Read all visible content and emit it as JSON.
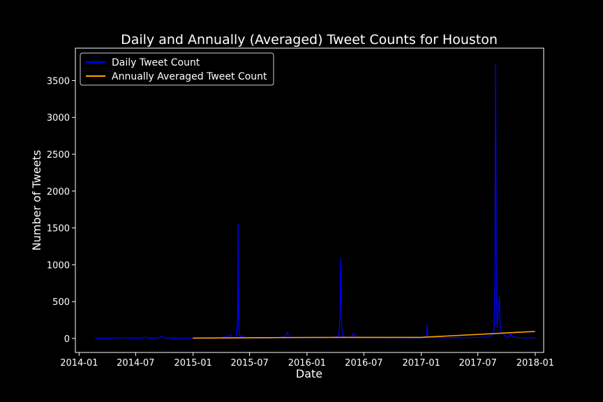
{
  "chart_data": {
    "type": "line",
    "title": "Daily and Annually (Averaged) Tweet Counts for Houston",
    "xlabel": "Date",
    "ylabel": "Number of Tweets",
    "x_ticks": [
      "2014-01",
      "2014-07",
      "2015-01",
      "2015-07",
      "2016-01",
      "2016-07",
      "2017-01",
      "2017-07",
      "2018-01"
    ],
    "y_ticks": [
      0,
      500,
      1000,
      1500,
      2000,
      2500,
      3000,
      3500
    ],
    "xlim": [
      "2013-12-20",
      "2018-01-28"
    ],
    "ylim": [
      -190,
      3940
    ],
    "grid": false,
    "legend_position": "upper left",
    "background_color": "#000000",
    "text_color": "#ffffff",
    "series": [
      {
        "name": "Daily Tweet Count",
        "color": "#0000ff",
        "points": [
          [
            "2014-02-20",
            4
          ],
          [
            "2014-03-20",
            2
          ],
          [
            "2014-04-20",
            5
          ],
          [
            "2014-05-15",
            8
          ],
          [
            "2014-06-01",
            10
          ],
          [
            "2014-06-10",
            3
          ],
          [
            "2014-06-25",
            6
          ],
          [
            "2014-07-15",
            2
          ],
          [
            "2014-08-01",
            20
          ],
          [
            "2014-08-10",
            4
          ],
          [
            "2014-08-25",
            5
          ],
          [
            "2014-09-10",
            3
          ],
          [
            "2014-09-22",
            30
          ],
          [
            "2014-10-01",
            5
          ],
          [
            "2014-10-25",
            4
          ],
          [
            "2014-11-20",
            3
          ],
          [
            "2014-12-20",
            4
          ],
          [
            "2015-01-10",
            3
          ],
          [
            "2015-02-10",
            5
          ],
          [
            "2015-03-10",
            4
          ],
          [
            "2015-04-01",
            6
          ],
          [
            "2015-04-15",
            30
          ],
          [
            "2015-04-20",
            5
          ],
          [
            "2015-05-01",
            50
          ],
          [
            "2015-05-06",
            8
          ],
          [
            "2015-05-20",
            10
          ],
          [
            "2015-05-24",
            300
          ],
          [
            "2015-05-25",
            1550
          ],
          [
            "2015-05-26",
            900
          ],
          [
            "2015-05-27",
            200
          ],
          [
            "2015-05-29",
            60
          ],
          [
            "2015-06-02",
            15
          ],
          [
            "2015-06-10",
            40
          ],
          [
            "2015-06-13",
            10
          ],
          [
            "2015-07-10",
            8
          ],
          [
            "2015-08-15",
            6
          ],
          [
            "2015-09-20",
            8
          ],
          [
            "2015-10-20",
            20
          ],
          [
            "2015-10-25",
            50
          ],
          [
            "2015-10-31",
            80
          ],
          [
            "2015-11-02",
            20
          ],
          [
            "2015-11-15",
            8
          ],
          [
            "2015-12-20",
            10
          ],
          [
            "2016-01-20",
            12
          ],
          [
            "2016-02-20",
            10
          ],
          [
            "2016-03-20",
            15
          ],
          [
            "2016-04-12",
            30
          ],
          [
            "2016-04-16",
            300
          ],
          [
            "2016-04-18",
            1080
          ],
          [
            "2016-04-19",
            700
          ],
          [
            "2016-04-21",
            150
          ],
          [
            "2016-04-25",
            30
          ],
          [
            "2016-05-10",
            15
          ],
          [
            "2016-05-25",
            20
          ],
          [
            "2016-05-28",
            70
          ],
          [
            "2016-06-01",
            60
          ],
          [
            "2016-06-05",
            20
          ],
          [
            "2016-06-20",
            12
          ],
          [
            "2016-08-01",
            10
          ],
          [
            "2016-09-15",
            9
          ],
          [
            "2016-11-01",
            10
          ],
          [
            "2016-12-10",
            8
          ],
          [
            "2017-01-10",
            10
          ],
          [
            "2017-01-18",
            40
          ],
          [
            "2017-01-20",
            190
          ],
          [
            "2017-01-22",
            30
          ],
          [
            "2017-02-10",
            10
          ],
          [
            "2017-03-20",
            8
          ],
          [
            "2017-04-20",
            12
          ],
          [
            "2017-06-01",
            10
          ],
          [
            "2017-07-01",
            15
          ],
          [
            "2017-08-01",
            20
          ],
          [
            "2017-08-10",
            40
          ],
          [
            "2017-08-15",
            30
          ],
          [
            "2017-08-22",
            100
          ],
          [
            "2017-08-25",
            800
          ],
          [
            "2017-08-27",
            3720
          ],
          [
            "2017-08-28",
            2500
          ],
          [
            "2017-08-30",
            600
          ],
          [
            "2017-09-01",
            150
          ],
          [
            "2017-09-08",
            580
          ],
          [
            "2017-09-10",
            200
          ],
          [
            "2017-09-15",
            80
          ],
          [
            "2017-09-25",
            40
          ],
          [
            "2017-10-05",
            20
          ],
          [
            "2017-10-15",
            60
          ],
          [
            "2017-10-22",
            20
          ],
          [
            "2017-11-10",
            10
          ],
          [
            "2017-12-10",
            8
          ],
          [
            "2017-12-31",
            6
          ]
        ]
      },
      {
        "name": "Annually Averaged Tweet Count",
        "color": "#ffa500",
        "points": [
          [
            "2014-12-31",
            5
          ],
          [
            "2015-12-31",
            14
          ],
          [
            "2016-12-31",
            15
          ],
          [
            "2017-12-31",
            95
          ]
        ]
      }
    ]
  }
}
